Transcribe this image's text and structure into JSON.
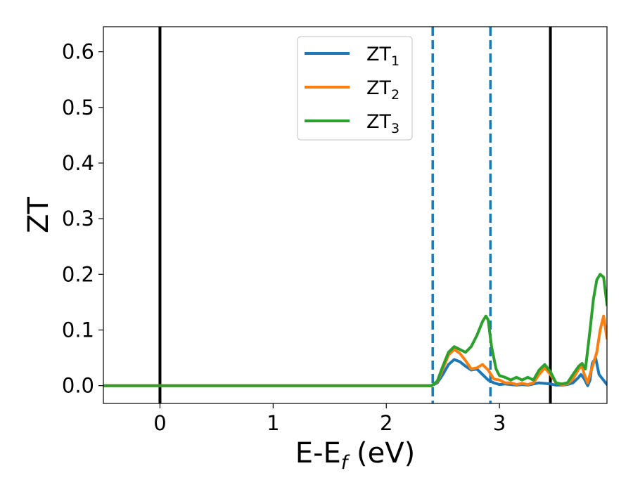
{
  "chart_data": {
    "type": "line",
    "xlabel": {
      "text": "E-E",
      "sub": "f",
      "suffix": " (eV)"
    },
    "ylabel": "ZT",
    "xlim": [
      -0.5,
      3.95
    ],
    "ylim": [
      -0.032,
      0.645
    ],
    "xticks": [
      0,
      1,
      2,
      3
    ],
    "xtick_labels": [
      "0",
      "1",
      "2",
      "3"
    ],
    "yticks": [
      0.0,
      0.1,
      0.2,
      0.3,
      0.4,
      0.5,
      0.6
    ],
    "ytick_labels": [
      "0.0",
      "0.1",
      "0.2",
      "0.3",
      "0.4",
      "0.5",
      "0.6"
    ],
    "grid": false,
    "legend_position": "top-center",
    "vlines": [
      {
        "x": 0.0,
        "style": "solid",
        "color": "#000000"
      },
      {
        "x": 2.41,
        "style": "dashed",
        "color": "#1f77b4"
      },
      {
        "x": 2.92,
        "style": "dashed",
        "color": "#1f77b4"
      },
      {
        "x": 3.45,
        "style": "solid",
        "color": "#000000"
      }
    ],
    "series": [
      {
        "name": "ZT",
        "subscript": "1",
        "color": "#1f77b4",
        "x": [
          -0.5,
          2.4,
          2.45,
          2.5,
          2.55,
          2.6,
          2.65,
          2.7,
          2.75,
          2.8,
          2.85,
          2.9,
          2.95,
          3.0,
          3.05,
          3.1,
          3.15,
          3.2,
          3.25,
          3.3,
          3.35,
          3.4,
          3.45,
          3.5,
          3.55,
          3.6,
          3.65,
          3.7,
          3.72,
          3.75,
          3.78,
          3.8,
          3.82,
          3.85,
          3.88,
          3.95
        ],
        "y": [
          0.0,
          0.0,
          0.005,
          0.02,
          0.038,
          0.047,
          0.043,
          0.035,
          0.028,
          0.03,
          0.02,
          0.01,
          0.005,
          0.002,
          0.003,
          0.002,
          0.001,
          0.002,
          0.001,
          0.003,
          0.005,
          0.004,
          0.003,
          0.001,
          0.001,
          0.002,
          0.005,
          0.015,
          0.02,
          0.012,
          0.0,
          0.01,
          0.04,
          0.05,
          0.02,
          0.002
        ]
      },
      {
        "name": "ZT",
        "subscript": "2",
        "color": "#ff7f0e",
        "x": [
          -0.5,
          2.4,
          2.45,
          2.5,
          2.55,
          2.6,
          2.65,
          2.7,
          2.75,
          2.8,
          2.85,
          2.9,
          2.95,
          3.0,
          3.05,
          3.1,
          3.15,
          3.2,
          3.25,
          3.3,
          3.35,
          3.4,
          3.45,
          3.5,
          3.55,
          3.6,
          3.65,
          3.7,
          3.73,
          3.75,
          3.78,
          3.8,
          3.83,
          3.86,
          3.89,
          3.92,
          3.95
        ],
        "y": [
          0.0,
          0.0,
          0.007,
          0.03,
          0.055,
          0.065,
          0.058,
          0.045,
          0.03,
          0.032,
          0.038,
          0.028,
          0.012,
          0.01,
          0.005,
          0.005,
          0.002,
          0.004,
          0.002,
          0.005,
          0.02,
          0.032,
          0.02,
          0.005,
          0.002,
          0.003,
          0.012,
          0.03,
          0.035,
          0.02,
          0.005,
          0.02,
          0.04,
          0.06,
          0.1,
          0.125,
          0.085
        ]
      },
      {
        "name": "ZT",
        "subscript": "3",
        "color": "#2ca02c",
        "x": [
          -0.5,
          2.4,
          2.45,
          2.5,
          2.55,
          2.6,
          2.65,
          2.7,
          2.75,
          2.8,
          2.85,
          2.88,
          2.9,
          2.93,
          2.97,
          3.0,
          3.05,
          3.1,
          3.15,
          3.2,
          3.25,
          3.3,
          3.35,
          3.4,
          3.45,
          3.5,
          3.55,
          3.6,
          3.65,
          3.7,
          3.73,
          3.76,
          3.8,
          3.83,
          3.86,
          3.89,
          3.92,
          3.95
        ],
        "y": [
          0.0,
          0.0,
          0.008,
          0.035,
          0.06,
          0.07,
          0.065,
          0.06,
          0.07,
          0.09,
          0.115,
          0.125,
          0.118,
          0.07,
          0.03,
          0.018,
          0.015,
          0.01,
          0.015,
          0.01,
          0.015,
          0.01,
          0.028,
          0.038,
          0.025,
          0.005,
          0.003,
          0.005,
          0.02,
          0.035,
          0.04,
          0.03,
          0.1,
          0.155,
          0.19,
          0.2,
          0.195,
          0.145
        ]
      }
    ]
  }
}
